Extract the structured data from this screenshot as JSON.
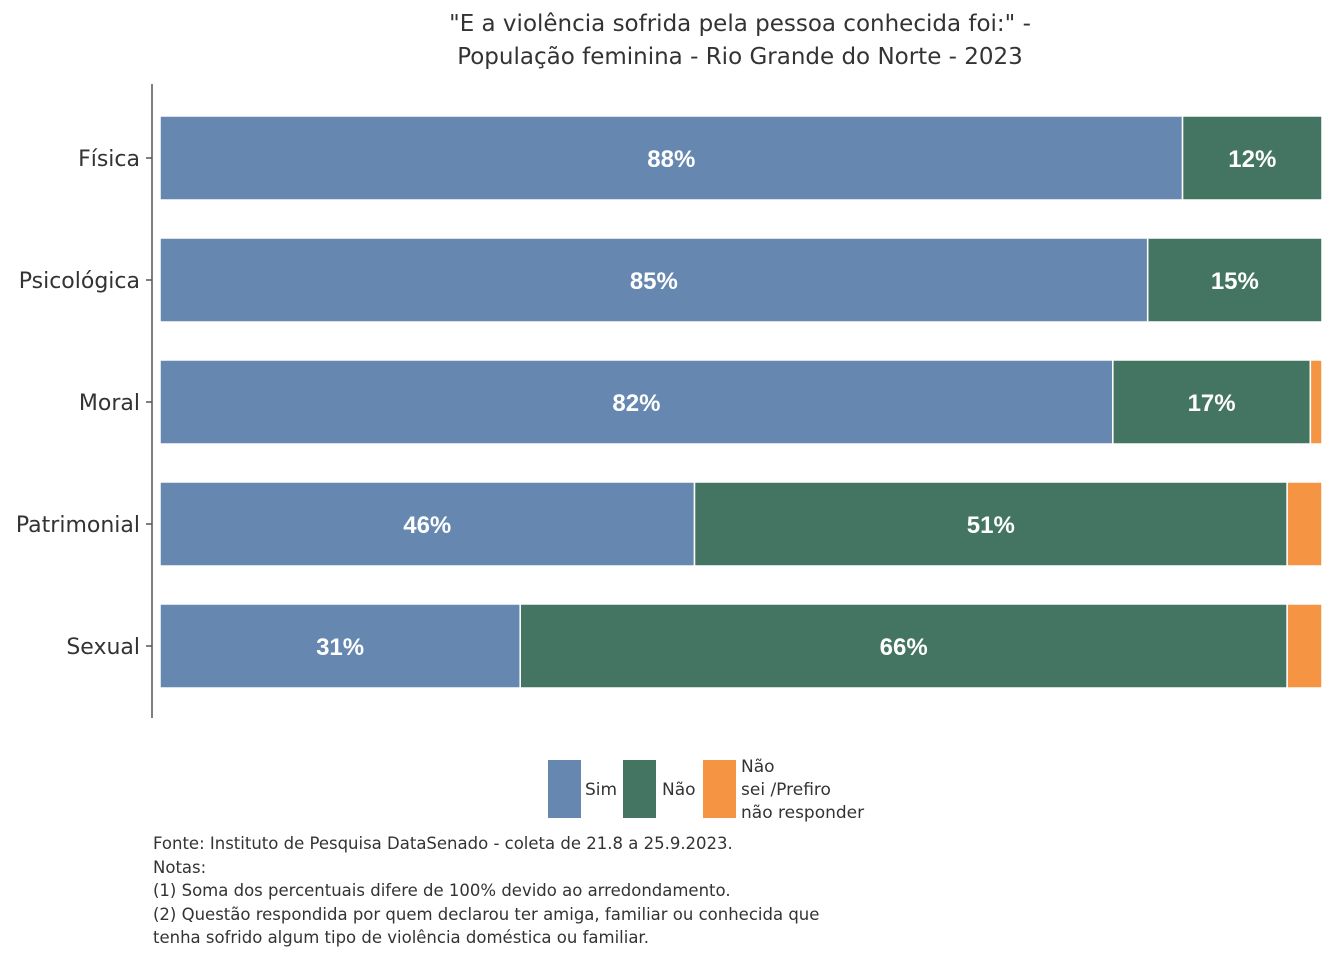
{
  "chart_data": {
    "type": "bar",
    "orientation": "horizontal",
    "stacked": true,
    "title_lines": [
      "\"E a violência sofrida pela pessoa conhecida foi:\" -",
      "População feminina - Rio Grande do Norte - 2023"
    ],
    "categories": [
      "Física",
      "Psicológica",
      "Moral",
      "Patrimonial",
      "Sexual"
    ],
    "series": [
      {
        "name": "Sim",
        "color": "#6688b0",
        "values": [
          88,
          85,
          82,
          46,
          31
        ],
        "labels": [
          "88%",
          "85%",
          "82%",
          "46%",
          "31%"
        ]
      },
      {
        "name": "Não",
        "color": "#447562",
        "values": [
          12,
          15,
          17,
          51,
          66
        ],
        "labels": [
          "12%",
          "15%",
          "17%",
          "51%",
          "66%"
        ]
      },
      {
        "name": "Não sei /Prefiro não responder",
        "color": "#f59543",
        "values": [
          0,
          0,
          1,
          3,
          3
        ],
        "labels": [
          "",
          "",
          "",
          "",
          ""
        ]
      }
    ],
    "legend_lines": [
      [
        "Sim"
      ],
      [
        "Não"
      ],
      [
        "Não",
        "sei /Prefiro",
        "não responder"
      ]
    ],
    "legend_position": "bottom",
    "xlim": [
      0,
      100
    ],
    "grid": false
  },
  "notes": {
    "source": "Fonte: Instituto de Pesquisa DataSenado - coleta de 21.8 a 25.9.2023.",
    "heading": "Notas:",
    "note1": "(1) Soma dos percentuais difere de 100% devido ao arredondamento.",
    "note2_line1": "(2) Questão respondida por quem declarou ter amiga, familiar ou conhecida que",
    "note2_line2": "tenha sofrido algum tipo de violência doméstica ou familiar."
  }
}
